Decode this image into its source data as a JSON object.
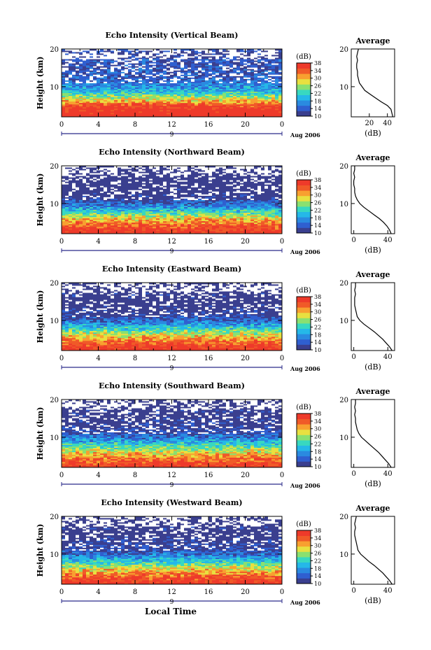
{
  "figure": {
    "x_axis_title": "Local Time",
    "date_label": "Aug 2006",
    "day_label": "9",
    "colorbar_unit": "(dB)",
    "profile_title": "Average",
    "profile_unit": "(dB)",
    "colors": {
      "colormap": [
        "#3a3f8f",
        "#2f5fd0",
        "#2a8ae0",
        "#25b8e8",
        "#38d8c0",
        "#8ae070",
        "#e8e040",
        "#f8a030",
        "#f05a28",
        "#ee3a2a"
      ],
      "beam_line": "#2b2b8a",
      "missing": "#ffffff"
    }
  },
  "chart_data": [
    {
      "type": "heatmap",
      "title": "Echo Intensity (Vertical Beam)",
      "xlabel": "",
      "ylabel": "Height (km)",
      "xlim": [
        0,
        24
      ],
      "ylim": [
        2,
        20
      ],
      "x_ticks": [
        "0",
        "4",
        "8",
        "12",
        "16",
        "20",
        "0"
      ],
      "y_ticks": [
        "20",
        "10"
      ],
      "colorbar_ticks": [
        "38",
        "34",
        "30",
        "26",
        "22",
        "18",
        "14",
        "10"
      ],
      "colorbar_range": [
        10,
        38
      ],
      "profile": {
        "type": "line",
        "xlim": [
          0,
          48
        ],
        "x_ticks": [
          "20",
          "40"
        ],
        "y_ticks": [
          "20",
          "10"
        ],
        "heights_km": [
          2,
          3,
          4,
          5,
          6,
          7,
          8,
          9,
          10,
          11,
          12,
          13,
          14,
          15,
          16,
          17,
          18,
          19,
          20
        ],
        "values_db": [
          46,
          45,
          44,
          40,
          33,
          27,
          21,
          15,
          12,
          9,
          8,
          7,
          7,
          6,
          6,
          7,
          6,
          7,
          8
        ]
      }
    },
    {
      "type": "heatmap",
      "title": "Echo Intensity (Northward Beam)",
      "xlabel": "",
      "ylabel": "Height (km)",
      "xlim": [
        0,
        24
      ],
      "ylim": [
        2,
        20
      ],
      "x_ticks": [
        "0",
        "4",
        "8",
        "12",
        "16",
        "20",
        "0"
      ],
      "y_ticks": [
        "20",
        "10"
      ],
      "colorbar_ticks": [
        "38",
        "34",
        "30",
        "26",
        "22",
        "18",
        "14",
        "10"
      ],
      "colorbar_range": [
        10,
        38
      ],
      "profile": {
        "type": "line",
        "xlim": [
          -3,
          48
        ],
        "x_ticks": [
          "0",
          "40"
        ],
        "y_ticks": [
          "20",
          "10"
        ],
        "heights_km": [
          2,
          3,
          4,
          5,
          6,
          7,
          8,
          9,
          10,
          11,
          12,
          13,
          14,
          15,
          16,
          17,
          18,
          19,
          20
        ],
        "values_db": [
          44,
          42,
          39,
          35,
          30,
          24,
          18,
          12,
          7,
          4,
          2,
          1,
          1,
          0,
          0,
          1,
          0,
          1,
          1
        ]
      }
    },
    {
      "type": "heatmap",
      "title": "Echo Intensity (Eastward Beam)",
      "xlabel": "",
      "ylabel": "Height (km)",
      "xlim": [
        0,
        24
      ],
      "ylim": [
        2,
        20
      ],
      "x_ticks": [
        "0",
        "4",
        "8",
        "12",
        "16",
        "20",
        "0"
      ],
      "y_ticks": [
        "20",
        "10"
      ],
      "colorbar_ticks": [
        "38",
        "34",
        "30",
        "26",
        "22",
        "18",
        "14",
        "10"
      ],
      "colorbar_range": [
        10,
        38
      ],
      "profile": {
        "type": "line",
        "xlim": [
          -3,
          48
        ],
        "x_ticks": [
          "0",
          "40"
        ],
        "y_ticks": [
          "20",
          "10"
        ],
        "heights_km": [
          2,
          3,
          4,
          5,
          6,
          7,
          8,
          9,
          10,
          11,
          12,
          13,
          14,
          15,
          16,
          17,
          18,
          19,
          20
        ],
        "values_db": [
          45,
          42,
          38,
          34,
          29,
          24,
          18,
          12,
          7,
          4,
          3,
          2,
          1,
          1,
          1,
          2,
          1,
          2,
          2
        ]
      }
    },
    {
      "type": "heatmap",
      "title": "Echo Intensity (Southward Beam)",
      "xlabel": "",
      "ylabel": "Height (km)",
      "xlim": [
        0,
        24
      ],
      "ylim": [
        2,
        20
      ],
      "x_ticks": [
        "0",
        "4",
        "8",
        "12",
        "16",
        "20",
        "0"
      ],
      "y_ticks": [
        "20",
        "10"
      ],
      "colorbar_ticks": [
        "38",
        "34",
        "30",
        "26",
        "22",
        "18",
        "14",
        "10"
      ],
      "colorbar_range": [
        10,
        38
      ],
      "profile": {
        "type": "line",
        "xlim": [
          -3,
          48
        ],
        "x_ticks": [
          "0",
          "40"
        ],
        "y_ticks": [
          "20",
          "10"
        ],
        "heights_km": [
          2,
          3,
          4,
          5,
          6,
          7,
          8,
          9,
          10,
          11,
          12,
          13,
          14,
          15,
          16,
          17,
          18,
          19,
          20
        ],
        "values_db": [
          44,
          41,
          37,
          33,
          29,
          24,
          19,
          14,
          9,
          6,
          4,
          3,
          2,
          2,
          1,
          2,
          1,
          2,
          2
        ]
      }
    },
    {
      "type": "heatmap",
      "title": "Echo Intensity (Westward Beam)",
      "xlabel": "Local Time",
      "ylabel": "Height (km)",
      "xlim": [
        0,
        24
      ],
      "ylim": [
        2,
        20
      ],
      "x_ticks": [
        "0",
        "4",
        "8",
        "12",
        "16",
        "20",
        "0"
      ],
      "y_ticks": [
        "20",
        "10"
      ],
      "colorbar_ticks": [
        "38",
        "34",
        "30",
        "26",
        "22",
        "18",
        "14",
        "10"
      ],
      "colorbar_range": [
        10,
        38
      ],
      "profile": {
        "type": "line",
        "xlim": [
          -3,
          48
        ],
        "x_ticks": [
          "0",
          "40"
        ],
        "y_ticks": [
          "20",
          "10"
        ],
        "heights_km": [
          2,
          3,
          4,
          5,
          6,
          7,
          8,
          9,
          10,
          11,
          12,
          13,
          14,
          15,
          16,
          17,
          18,
          19,
          20
        ],
        "values_db": [
          45,
          42,
          38,
          34,
          29,
          24,
          18,
          13,
          8,
          5,
          4,
          3,
          2,
          1,
          1,
          2,
          1,
          2,
          3
        ]
      }
    }
  ]
}
